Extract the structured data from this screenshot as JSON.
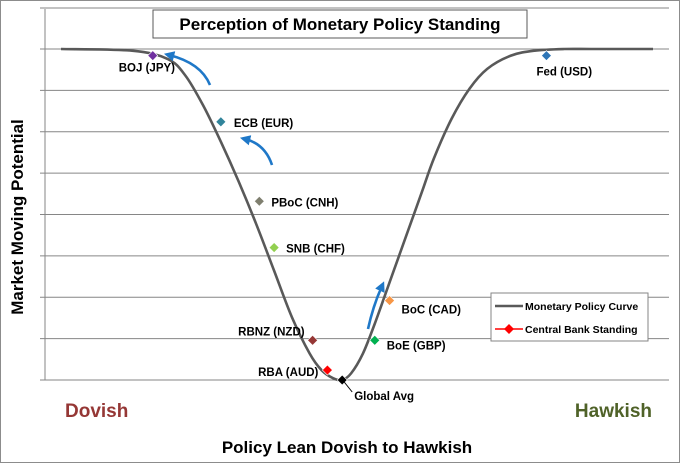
{
  "chart_data": {
    "type": "line",
    "title": "Perception of Monetary Policy Standing",
    "xlabel": "Policy Lean Dovish to Hawkish",
    "ylabel": "Market Moving Potential",
    "xlim": [
      0,
      100
    ],
    "ylim": [
      0,
      100
    ],
    "grid": true,
    "legend_position": "right",
    "corner_labels": {
      "left": "Dovish",
      "right": "Hawkish",
      "left_color": "#953735",
      "right_color": "#4f6228"
    },
    "series": [
      {
        "name": "Monetary Policy Curve",
        "color": "#595959",
        "x": [
          0,
          12,
          18,
          21,
          24,
          27,
          30,
          33,
          36,
          39,
          42,
          44,
          46,
          47.5,
          49,
          51,
          53,
          55,
          57,
          59,
          61,
          63,
          66,
          69,
          72,
          76,
          80,
          85,
          90,
          100
        ],
        "y": [
          100,
          99.5,
          97,
          92,
          83,
          72,
          60,
          47,
          33,
          19,
          8,
          3,
          0.5,
          0,
          2,
          8,
          17,
          27,
          37,
          47,
          57,
          67,
          79,
          88,
          94,
          98,
          99.5,
          100,
          100,
          100
        ]
      },
      {
        "name": "Central Bank Standing",
        "color": "#ff0000",
        "points": [
          {
            "label": "BOJ (JPY)",
            "x": 15.5,
            "y": 98,
            "color": "#7030a0"
          },
          {
            "label": "ECB (EUR)",
            "x": 27,
            "y": 78,
            "color": "#31849b"
          },
          {
            "label": "PBoC (CNH)",
            "x": 33.5,
            "y": 54,
            "color": "#7f7f6f"
          },
          {
            "label": "SNB (CHF)",
            "x": 36,
            "y": 40,
            "color": "#92d050"
          },
          {
            "label": "RBNZ (NZD)",
            "x": 42.5,
            "y": 12,
            "color": "#953735"
          },
          {
            "label": "RBA (AUD)",
            "x": 45,
            "y": 3,
            "color": "#ff0000"
          },
          {
            "label": "Global Avg",
            "x": 47.5,
            "y": 0,
            "color": "#000000"
          },
          {
            "label": "BoE (GBP)",
            "x": 53,
            "y": 12,
            "color": "#00b050"
          },
          {
            "label": "BoC (CAD)",
            "x": 55.5,
            "y": 24,
            "color": "#f79646"
          },
          {
            "label": "Fed (USD)",
            "x": 82,
            "y": 98,
            "color": "#2e75b6"
          }
        ]
      }
    ],
    "annotations": [
      {
        "type": "arrow",
        "direction": "up-left",
        "near": "BOJ (JPY)"
      },
      {
        "type": "arrow",
        "direction": "up-left",
        "near": "ECB (EUR)"
      },
      {
        "type": "arrow",
        "direction": "up-right",
        "near": "BoE (GBP)"
      }
    ]
  }
}
